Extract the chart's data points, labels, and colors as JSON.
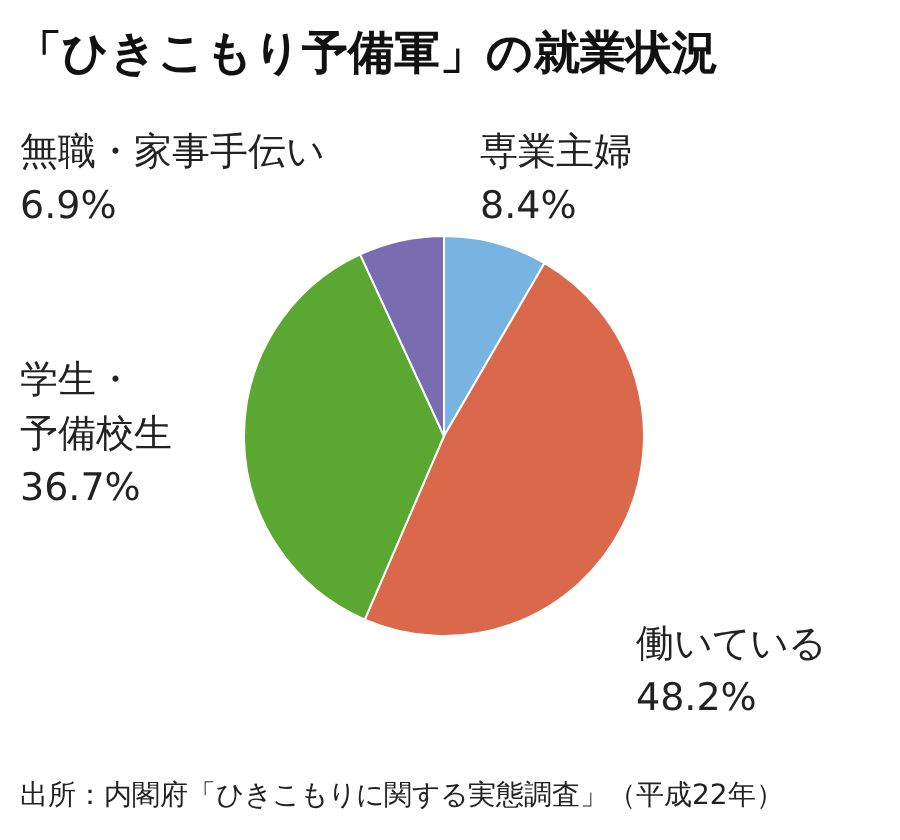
{
  "chart_data": {
    "type": "pie",
    "title": "「ひきこもり予備軍」の就業状況",
    "categories": [
      "専業主婦",
      "働いている",
      "学生・予備校生",
      "無職・家事手伝い"
    ],
    "values": [
      8.4,
      48.2,
      36.7,
      6.9
    ],
    "value_labels": [
      "8.4%",
      "48.2%",
      "36.7%",
      "6.9%"
    ],
    "colors": [
      "#78b4e2",
      "#d9694a",
      "#5aa832",
      "#7a6cb0"
    ],
    "annotations": [
      "出所：内閣府「ひきこもりに関する実態調査」（平成22年）"
    ]
  }
}
